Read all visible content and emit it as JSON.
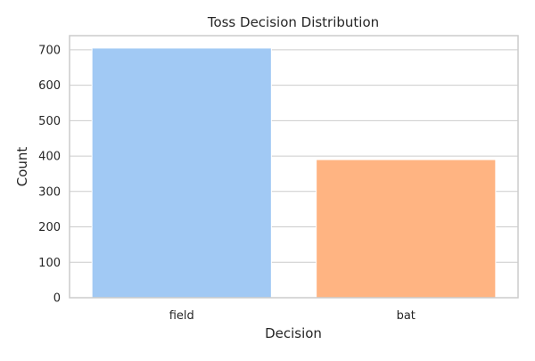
{
  "chart_data": {
    "type": "bar",
    "title": "Toss Decision Distribution",
    "xlabel": "Decision",
    "ylabel": "Count",
    "categories": [
      "field",
      "bat"
    ],
    "values": [
      705,
      390
    ],
    "ylim": [
      0,
      740
    ],
    "yticks": [
      0,
      100,
      200,
      300,
      400,
      500,
      600,
      700
    ],
    "grid": "horizontal",
    "colors": [
      "#a1c9f4",
      "#ffb482"
    ],
    "grid_color": "#cccccc",
    "spine_color": "#cccccc"
  }
}
